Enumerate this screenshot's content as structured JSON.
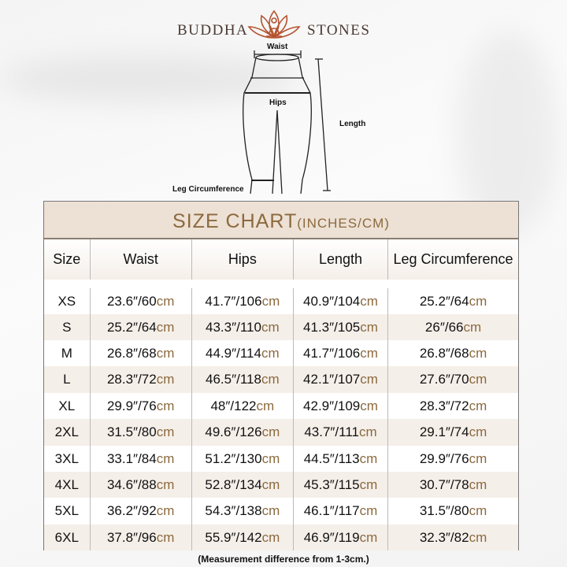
{
  "brand": {
    "left": "BUDDHA",
    "right": "STONES"
  },
  "diagram": {
    "waist": "Waist",
    "hips": "Hips",
    "length": "Length",
    "leg": "Leg Circumference"
  },
  "table": {
    "title": "SIZE CHART",
    "title_units": "(INCHES/CM)",
    "headers": [
      "Size",
      "Waist",
      "Hips",
      "Length",
      "Leg Circumference"
    ],
    "unit": "cm",
    "rows": [
      {
        "size": "XS",
        "values": [
          "23.6″/60",
          "41.7″/106",
          "40.9″/104",
          "25.2″/64"
        ]
      },
      {
        "size": "S",
        "values": [
          "25.2″/64",
          "43.3″/110",
          "41.3″/105",
          "26″/66"
        ]
      },
      {
        "size": "M",
        "values": [
          "26.8″/68",
          "44.9″/114",
          "41.7″/106",
          "26.8″/68"
        ]
      },
      {
        "size": "L",
        "values": [
          "28.3″/72",
          "46.5″/118",
          "42.1″/107",
          "27.6″/70"
        ]
      },
      {
        "size": "XL",
        "values": [
          "29.9″/76",
          "48″/122",
          "42.9″/109",
          "28.3″/72"
        ]
      },
      {
        "size": "2XL",
        "values": [
          "31.5″/80",
          "49.6″/126",
          "43.7″/111",
          "29.1″/74"
        ]
      },
      {
        "size": "3XL",
        "values": [
          "33.1″/84",
          "51.2″/130",
          "44.5″/113",
          "29.9″/76"
        ]
      },
      {
        "size": "4XL",
        "values": [
          "34.6″/88",
          "52.8″/134",
          "45.3″/115",
          "30.7″/78"
        ]
      },
      {
        "size": "5XL",
        "values": [
          "36.2″/92",
          "54.3″/138",
          "46.1″/117",
          "31.5″/80"
        ]
      },
      {
        "size": "6XL",
        "values": [
          "37.8″/96",
          "55.9″/142",
          "46.9″/119",
          "32.3″/82"
        ]
      }
    ]
  },
  "footer": "(Measurement difference from 1-3cm.)",
  "colors": {
    "accent": "#8b6a3e",
    "title_bg": "#ede0d4",
    "row_alt": "#f5efe9",
    "logo": "#b5532f"
  }
}
